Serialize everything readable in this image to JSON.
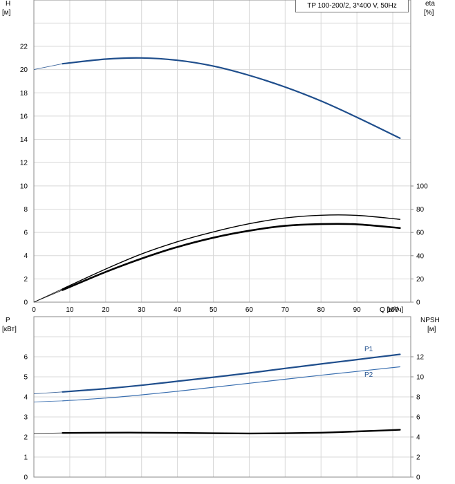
{
  "chart_data": [
    {
      "type": "line",
      "title": "TP 100-200/2, 3*400 V, 50Hz",
      "xlabel": "Q [м³/ч]",
      "xlim": [
        0,
        105
      ],
      "xticks": [
        0,
        10,
        20,
        30,
        40,
        50,
        60,
        70,
        80,
        90,
        100
      ],
      "y_left": {
        "label_top": "H",
        "label_unit": "[м]",
        "lim": [
          0,
          24
        ],
        "ticks": [
          0,
          2,
          4,
          6,
          8,
          10,
          12,
          14,
          16,
          18,
          20,
          22
        ]
      },
      "y_right": {
        "label_top": "eta",
        "label_unit": "[%]",
        "lim": [
          0,
          120
        ],
        "ticks": [
          0,
          20,
          40,
          60,
          80,
          100
        ]
      },
      "grid": true,
      "series": [
        {
          "axis": "left",
          "color": "#1f4e8c",
          "width": 2.2,
          "x": [
            8,
            20,
            30,
            40,
            50,
            60,
            70,
            80,
            90,
            102
          ],
          "y": [
            20.5,
            20.9,
            21.0,
            20.8,
            20.3,
            19.5,
            18.5,
            17.3,
            15.9,
            14.1
          ],
          "extension": {
            "x": [
              0,
              8
            ],
            "y": [
              20.0,
              20.5
            ]
          }
        },
        {
          "axis": "right",
          "color": "#000000",
          "width": 1.4,
          "x": [
            8,
            20,
            30,
            40,
            50,
            60,
            70,
            80,
            90,
            102
          ],
          "y": [
            11.5,
            28.5,
            41.5,
            52.0,
            60.5,
            67.5,
            72.5,
            74.8,
            74.7,
            71.3
          ],
          "extension": {
            "x": [
              0,
              8
            ],
            "y": [
              0,
              11.5
            ]
          }
        },
        {
          "axis": "right",
          "color": "#000000",
          "width": 2.6,
          "x": [
            8,
            20,
            30,
            40,
            50,
            60,
            70,
            80,
            90,
            102
          ],
          "y": [
            10.5,
            26.0,
            37.5,
            47.5,
            55.5,
            61.5,
            65.7,
            67.2,
            67.0,
            63.8
          ],
          "extension": {
            "x": [
              0,
              8
            ],
            "y": [
              0,
              10.5
            ]
          }
        }
      ]
    },
    {
      "type": "line",
      "xlim": [
        0,
        105
      ],
      "y_left": {
        "label_top": "P",
        "label_unit": "[кВт]",
        "lim": [
          0,
          7
        ],
        "ticks": [
          0,
          1,
          2,
          3,
          4,
          5,
          6
        ]
      },
      "y_right": {
        "label_top": "NPSH",
        "label_unit": "[м]",
        "lim": [
          0,
          14
        ],
        "ticks": [
          0,
          2,
          4,
          6,
          8,
          10,
          12
        ]
      },
      "grid": true,
      "series": [
        {
          "name": "P1",
          "axis": "left",
          "color": "#1f4e8c",
          "width": 2.2,
          "x": [
            8,
            20,
            30,
            40,
            50,
            60,
            70,
            80,
            90,
            102
          ],
          "y": [
            4.25,
            4.41,
            4.58,
            4.78,
            4.98,
            5.19,
            5.42,
            5.64,
            5.86,
            6.12
          ],
          "extension": {
            "x": [
              0,
              8
            ],
            "y": [
              4.15,
              4.25
            ]
          }
        },
        {
          "name": "P2",
          "axis": "left",
          "color": "#3a6fb0",
          "width": 1.2,
          "x": [
            8,
            20,
            30,
            40,
            50,
            60,
            70,
            80,
            90,
            102
          ],
          "y": [
            3.8,
            3.94,
            4.1,
            4.28,
            4.48,
            4.68,
            4.88,
            5.08,
            5.27,
            5.5
          ],
          "extension": {
            "x": [
              0,
              8
            ],
            "y": [
              3.75,
              3.8
            ]
          }
        },
        {
          "axis": "right",
          "color": "#000000",
          "width": 2.4,
          "x": [
            8,
            20,
            30,
            40,
            50,
            60,
            70,
            80,
            90,
            102
          ],
          "y": [
            4.4,
            4.43,
            4.43,
            4.41,
            4.37,
            4.35,
            4.37,
            4.43,
            4.55,
            4.72
          ],
          "extension": {
            "x": [
              0,
              8
            ],
            "y": [
              4.35,
              4.4
            ]
          }
        }
      ]
    }
  ]
}
